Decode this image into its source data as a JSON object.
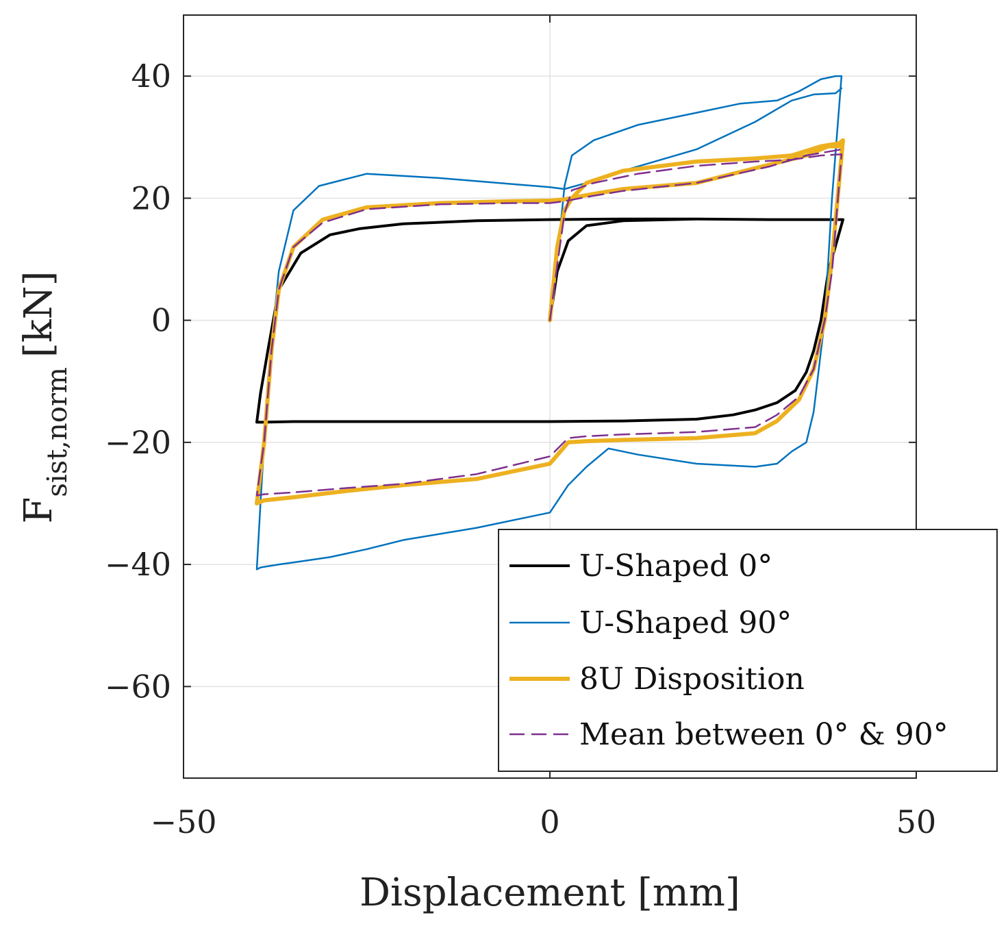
{
  "chart_data": {
    "type": "line",
    "title": "",
    "xlabel": "Displacement [mm]",
    "ylabel_main": "F",
    "ylabel_sub": "sist,norm",
    "ylabel_unit": "[kN]",
    "xlim": [
      -50,
      50
    ],
    "ylim": [
      -75,
      50
    ],
    "xticks": [
      -50,
      0,
      50
    ],
    "xtick_labels": [
      "−50",
      "0",
      "50"
    ],
    "yticks": [
      -60,
      -40,
      -20,
      0,
      20,
      40
    ],
    "ytick_labels": [
      "−60",
      "−40",
      "−20",
      "0",
      "20",
      "40"
    ],
    "grid": true,
    "legend_position": "bottom-right",
    "series": [
      {
        "name": "U-Shaped 0°",
        "color": "#000000",
        "style": "solid",
        "width": 4,
        "x": [
          0,
          1,
          2.5,
          5,
          10,
          20,
          30,
          38,
          40,
          40,
          38,
          37,
          36,
          35,
          33.5,
          31,
          28,
          25,
          20,
          10,
          0,
          -20,
          -35,
          -39,
          -40,
          -39.5,
          -38.5,
          -37,
          -34,
          -30,
          -26,
          -20,
          -10,
          0,
          10,
          20,
          30,
          38,
          40
        ],
        "y": [
          0,
          8,
          13,
          15.5,
          16.3,
          16.6,
          16.5,
          16.5,
          16.5,
          16.5,
          8,
          0,
          -5,
          -8.5,
          -11.5,
          -13.5,
          -14.7,
          -15.5,
          -16.2,
          -16.5,
          -16.6,
          -16.6,
          -16.6,
          -16.7,
          -16.7,
          -12,
          -5,
          5,
          11,
          14,
          15,
          15.8,
          16.3,
          16.5,
          16.6,
          16.6,
          16.5,
          16.5,
          16.5
        ]
      },
      {
        "name": "U-Shaped 90°",
        "color": "#0072BD",
        "style": "solid",
        "width": 2.5,
        "x": [
          0,
          1,
          2,
          3,
          6,
          12,
          20,
          26,
          31,
          34,
          37,
          39,
          39.8,
          39.8,
          38.5,
          37.5,
          36,
          35,
          33,
          31,
          28,
          20,
          12,
          8,
          5,
          2.5,
          0,
          -10,
          -20,
          -25,
          -30,
          -34,
          -37,
          -39.5,
          -40,
          -39.5,
          -38.5,
          -37,
          -35,
          -31.5,
          -25,
          -15,
          -5,
          0,
          2,
          5,
          10,
          20,
          28,
          33,
          36,
          39,
          39.8
        ],
        "y": [
          0,
          10,
          22,
          27,
          29.5,
          32,
          34,
          35.5,
          36,
          37.5,
          39.5,
          40,
          40,
          40,
          20,
          0,
          -15,
          -20,
          -21.5,
          -23.5,
          -24,
          -23.5,
          -22,
          -21,
          -24,
          -27,
          -31.5,
          -34,
          -36,
          -37.5,
          -38.8,
          -39.5,
          -40,
          -40.5,
          -40.8,
          -30,
          -10,
          8,
          18,
          22,
          24,
          23.3,
          22.3,
          21.8,
          21.5,
          22.5,
          24.5,
          28,
          32.5,
          36,
          37,
          37.2,
          38
        ]
      },
      {
        "name": "8U Disposition",
        "color": "#EDB120",
        "style": "solid",
        "width": 6,
        "x": [
          0,
          1,
          2,
          3,
          5,
          10,
          20,
          28,
          33,
          37,
          39.5,
          40,
          38.5,
          37.5,
          36,
          34,
          31,
          28,
          20,
          10,
          5,
          2.5,
          0,
          -10,
          -20,
          -28,
          -35,
          -39,
          -40,
          -39,
          -38,
          -37,
          -35,
          -31,
          -25,
          -15,
          -5,
          0,
          2,
          5,
          10,
          20,
          30,
          35,
          38,
          39.5
        ],
        "y": [
          0,
          12,
          18,
          20,
          22.5,
          24.5,
          26,
          26.5,
          27,
          28.5,
          29,
          29.5,
          10,
          0,
          -8,
          -13,
          -16.5,
          -18.5,
          -19.3,
          -19.6,
          -19.8,
          -20,
          -23.5,
          -26,
          -27,
          -28,
          -29,
          -29.5,
          -30,
          -20,
          -5,
          5,
          12,
          16.5,
          18.5,
          19.2,
          19.5,
          19.6,
          19.8,
          20.5,
          21.5,
          22.5,
          25.5,
          27,
          28.5,
          28.5
        ]
      },
      {
        "name": "Mean between 0° & 90°",
        "color": "#7E2F8E",
        "style": "dashed",
        "width": 2.5,
        "x": [
          0,
          1,
          2,
          3,
          6,
          12,
          20,
          28,
          33,
          37,
          39.8,
          38.5,
          37.5,
          36,
          34,
          31,
          28,
          20,
          10,
          5,
          2.5,
          0,
          -10,
          -20,
          -28,
          -35,
          -39,
          -40,
          -39,
          -38,
          -37,
          -35,
          -31,
          -25,
          -15,
          -5,
          0,
          2,
          5,
          10,
          20,
          30,
          35,
          39.8
        ],
        "y": [
          0,
          9,
          17.5,
          21.3,
          22.5,
          24,
          25.3,
          26,
          26.3,
          27,
          27.2,
          8,
          0,
          -8,
          -12.5,
          -15.5,
          -17.5,
          -18.3,
          -18.7,
          -19,
          -19.3,
          -22.3,
          -25.2,
          -26.8,
          -27.5,
          -28.2,
          -28.5,
          -28.7,
          -20,
          -5,
          5,
          12,
          16,
          18.2,
          19,
          19.2,
          19.2,
          19.5,
          20.2,
          21.2,
          22.5,
          25.2,
          27,
          28
        ]
      }
    ]
  }
}
